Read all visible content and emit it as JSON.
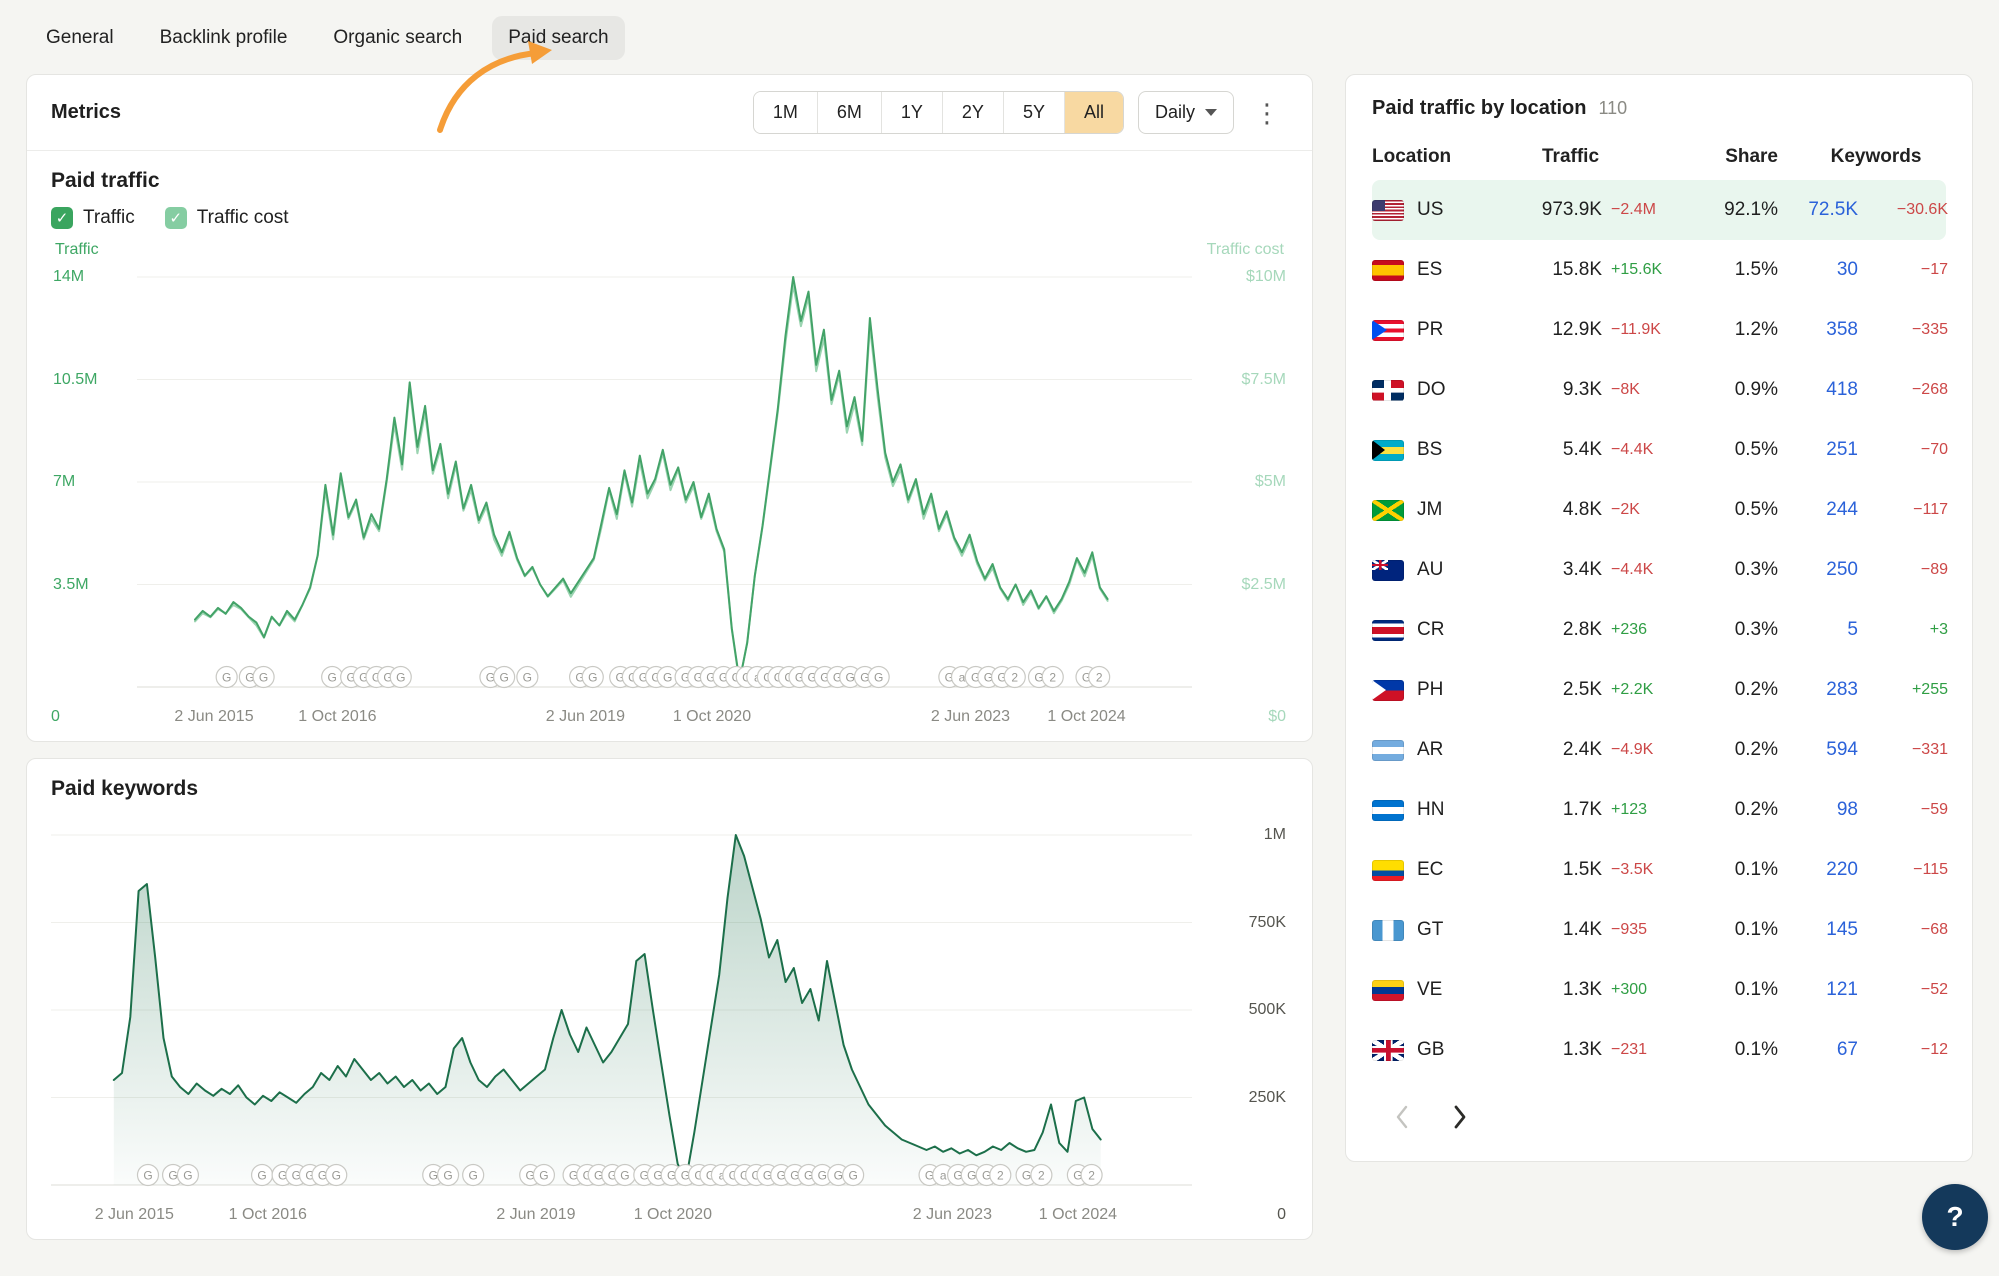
{
  "palette": {
    "accent_orange": "#f59d38",
    "active_range_bg": "#f8d9a2",
    "traffic_green": "#43a368",
    "traffic_cost_green": "#9bd4b1",
    "keywords_green": "#1c6f4a",
    "positive": "#2f9e44",
    "negative": "#cc4747",
    "link_blue": "#2b62d9",
    "row_highlight": "#e9f6ee"
  },
  "tabs": {
    "items": [
      {
        "label": "General",
        "active": false
      },
      {
        "label": "Backlink profile",
        "active": false
      },
      {
        "label": "Organic search",
        "active": false
      },
      {
        "label": "Paid search",
        "active": true
      }
    ]
  },
  "metrics": {
    "title": "Metrics",
    "range_buttons": [
      "1M",
      "6M",
      "1Y",
      "2Y",
      "5Y",
      "All"
    ],
    "active_range": "All",
    "granularity": "Daily",
    "more_icon": "⋮"
  },
  "paid_traffic_section": {
    "title": "Paid traffic",
    "legend": [
      {
        "label": "Traffic",
        "checked": true,
        "color": "#3aa55f"
      },
      {
        "label": "Traffic cost",
        "checked": true,
        "color": "#85cda2"
      }
    ]
  },
  "paid_keywords_section": {
    "title": "Paid keywords"
  },
  "chart_data": [
    {
      "type": "line",
      "title": "Paid traffic",
      "x_range": [
        0.055,
        0.92
      ],
      "x_labels": [
        {
          "label": "2 Jun 2015",
          "f": 0.073
        },
        {
          "label": "1 Oct 2016",
          "f": 0.19
        },
        {
          "label": "2 Jun 2019",
          "f": 0.425
        },
        {
          "label": "1 Oct 2020",
          "f": 0.545
        },
        {
          "label": "2 Jun 2023",
          "f": 0.79
        },
        {
          "label": "1 Oct 2024",
          "f": 0.9
        }
      ],
      "primary_max": 14,
      "grid_values": [
        14,
        10.5,
        7,
        3.5,
        0
      ],
      "left_axis": {
        "title": "Traffic",
        "color": "#3ea764",
        "zero_label": "0",
        "ticks": [
          {
            "label": "14M",
            "value": 14
          },
          {
            "label": "10.5M",
            "value": 10.5
          },
          {
            "label": "7M",
            "value": 7
          },
          {
            "label": "3.5M",
            "value": 3.5
          }
        ]
      },
      "right_axis": {
        "title": "Traffic cost",
        "color": "#a6d8bb",
        "zero_label": "$0",
        "max": 10,
        "ticks": [
          {
            "label": "$10M",
            "value": 10
          },
          {
            "label": "$7.5M",
            "value": 7.5
          },
          {
            "label": "$5M",
            "value": 5
          },
          {
            "label": "$2.5M",
            "value": 2.5
          }
        ]
      },
      "series": [
        {
          "name": "Traffic cost",
          "unit": "$M",
          "color": "#9bd4b1",
          "axis_max": 10,
          "values": [
            1.6,
            1.8,
            1.7,
            1.9,
            1.8,
            2.0,
            1.9,
            1.7,
            1.5,
            1.2,
            1.7,
            1.5,
            1.8,
            1.6,
            2.0,
            2.4,
            3.2,
            4.8,
            3.6,
            5.1,
            4.1,
            4.5,
            3.6,
            4.1,
            3.8,
            5.0,
            6.4,
            5.3,
            7.3,
            5.7,
            6.7,
            5.2,
            5.8,
            4.6,
            5.4,
            4.3,
            4.8,
            4.0,
            4.4,
            3.6,
            3.2,
            3.7,
            3.1,
            2.7,
            2.9,
            2.5,
            2.2,
            2.4,
            2.6,
            2.2,
            2.5,
            2.8,
            3.1,
            3.9,
            4.8,
            4.1,
            5.2,
            4.4,
            5.5,
            4.6,
            5.0,
            5.7,
            4.8,
            5.3,
            4.5,
            4.9,
            4.1,
            4.6,
            3.8,
            3.3,
            1.4,
            0.1,
            1.1,
            2.7,
            3.9,
            5.3,
            6.7,
            8.4,
            9.8,
            8.8,
            9.5,
            7.7,
            8.5,
            6.9,
            7.6,
            6.2,
            6.9,
            5.9,
            8.8,
            7.1,
            5.6,
            4.9,
            5.3,
            4.5,
            5.0,
            4.1,
            4.6,
            3.8,
            4.2,
            3.6,
            3.2,
            3.6,
            3.0,
            2.6,
            2.9,
            2.4,
            2.1,
            2.5,
            2.0,
            2.3,
            1.9,
            2.2,
            1.8,
            2.1,
            2.5,
            3.1,
            2.7,
            3.2,
            2.4,
            2.1
          ]
        },
        {
          "name": "Traffic",
          "unit": "M",
          "color": "#43a368",
          "axis_max": 14,
          "values": [
            2.3,
            2.6,
            2.4,
            2.7,
            2.5,
            2.9,
            2.7,
            2.4,
            2.2,
            1.7,
            2.4,
            2.1,
            2.6,
            2.3,
            2.8,
            3.4,
            4.5,
            6.9,
            5.2,
            7.3,
            5.8,
            6.4,
            5.1,
            5.9,
            5.4,
            7.1,
            9.2,
            7.6,
            10.4,
            8.2,
            9.6,
            7.4,
            8.3,
            6.6,
            7.7,
            6.1,
            6.9,
            5.7,
            6.3,
            5.2,
            4.6,
            5.3,
            4.4,
            3.8,
            4.1,
            3.5,
            3.1,
            3.4,
            3.7,
            3.2,
            3.6,
            4.0,
            4.4,
            5.6,
            6.8,
            5.9,
            7.4,
            6.3,
            7.9,
            6.6,
            7.1,
            8.1,
            6.9,
            7.5,
            6.4,
            7.0,
            5.8,
            6.6,
            5.4,
            4.7,
            2.0,
            0.2,
            1.5,
            3.8,
            5.5,
            7.5,
            9.5,
            12.0,
            14.0,
            12.5,
            13.5,
            11.0,
            12.2,
            9.8,
            10.8,
            8.9,
            9.9,
            8.4,
            12.6,
            10.2,
            8.0,
            7.0,
            7.6,
            6.4,
            7.1,
            5.9,
            6.6,
            5.4,
            6.0,
            5.1,
            4.6,
            5.2,
            4.3,
            3.7,
            4.2,
            3.4,
            3.0,
            3.5,
            2.9,
            3.3,
            2.7,
            3.1,
            2.6,
            3.0,
            3.6,
            4.4,
            3.9,
            4.6,
            3.4,
            3.0
          ]
        }
      ],
      "markers": [
        {
          "f": 0.085,
          "l": "G"
        },
        {
          "f": 0.107,
          "l": "G"
        },
        {
          "f": 0.12,
          "l": "G"
        },
        {
          "f": 0.185,
          "l": "G"
        },
        {
          "f": 0.203,
          "l": "G"
        },
        {
          "f": 0.215,
          "l": "G"
        },
        {
          "f": 0.227,
          "l": "G"
        },
        {
          "f": 0.238,
          "l": "G"
        },
        {
          "f": 0.25,
          "l": "G"
        },
        {
          "f": 0.335,
          "l": "G"
        },
        {
          "f": 0.348,
          "l": "G"
        },
        {
          "f": 0.37,
          "l": "G"
        },
        {
          "f": 0.42,
          "l": "G"
        },
        {
          "f": 0.432,
          "l": "G"
        },
        {
          "f": 0.458,
          "l": "G"
        },
        {
          "f": 0.47,
          "l": "G"
        },
        {
          "f": 0.48,
          "l": "G"
        },
        {
          "f": 0.492,
          "l": "G"
        },
        {
          "f": 0.503,
          "l": "G"
        },
        {
          "f": 0.52,
          "l": "G"
        },
        {
          "f": 0.532,
          "l": "G"
        },
        {
          "f": 0.544,
          "l": "G"
        },
        {
          "f": 0.556,
          "l": "G"
        },
        {
          "f": 0.568,
          "l": "G"
        },
        {
          "f": 0.578,
          "l": "G"
        },
        {
          "f": 0.588,
          "l": "a"
        },
        {
          "f": 0.598,
          "l": "G"
        },
        {
          "f": 0.608,
          "l": "G"
        },
        {
          "f": 0.618,
          "l": "G"
        },
        {
          "f": 0.628,
          "l": "G"
        },
        {
          "f": 0.64,
          "l": "G"
        },
        {
          "f": 0.652,
          "l": "G"
        },
        {
          "f": 0.664,
          "l": "G"
        },
        {
          "f": 0.676,
          "l": "G"
        },
        {
          "f": 0.69,
          "l": "G"
        },
        {
          "f": 0.703,
          "l": "G"
        },
        {
          "f": 0.77,
          "l": "G"
        },
        {
          "f": 0.782,
          "l": "a"
        },
        {
          "f": 0.795,
          "l": "G"
        },
        {
          "f": 0.807,
          "l": "G"
        },
        {
          "f": 0.82,
          "l": "G"
        },
        {
          "f": 0.832,
          "l": "2"
        },
        {
          "f": 0.855,
          "l": "G"
        },
        {
          "f": 0.868,
          "l": "2"
        },
        {
          "f": 0.9,
          "l": "G"
        },
        {
          "f": 0.912,
          "l": "2"
        }
      ]
    },
    {
      "type": "area",
      "title": "Paid keywords",
      "x_range": [
        0.055,
        0.92
      ],
      "x_labels": [
        {
          "label": "2 Jun 2015",
          "f": 0.073
        },
        {
          "label": "1 Oct 2016",
          "f": 0.19
        },
        {
          "label": "2 Jun 2019",
          "f": 0.425
        },
        {
          "label": "1 Oct 2020",
          "f": 0.545
        },
        {
          "label": "2 Jun 2023",
          "f": 0.79
        },
        {
          "label": "1 Oct 2024",
          "f": 0.9
        }
      ],
      "primary_max": 1000,
      "grid_values": [
        1000,
        750,
        500,
        250,
        0
      ],
      "right_axis": {
        "title": "",
        "color": "#55554f",
        "zero_label": "0",
        "max": 1000,
        "ticks": [
          {
            "label": "1M",
            "value": 1000
          },
          {
            "label": "750K",
            "value": 750
          },
          {
            "label": "500K",
            "value": 500
          },
          {
            "label": "250K",
            "value": 250
          }
        ]
      },
      "series": [
        {
          "name": "Paid keywords",
          "unit": "K",
          "color": "#1c6f4a",
          "fill": true,
          "axis_max": 1000,
          "values": [
            300,
            320,
            480,
            840,
            860,
            650,
            420,
            310,
            280,
            260,
            290,
            270,
            255,
            275,
            260,
            285,
            250,
            230,
            255,
            240,
            265,
            250,
            235,
            260,
            280,
            320,
            300,
            340,
            310,
            360,
            330,
            300,
            320,
            290,
            310,
            280,
            300,
            270,
            290,
            260,
            280,
            390,
            420,
            350,
            300,
            280,
            310,
            330,
            300,
            270,
            290,
            310,
            330,
            420,
            500,
            430,
            380,
            450,
            400,
            350,
            380,
            420,
            460,
            640,
            660,
            500,
            350,
            200,
            60,
            15,
            150,
            300,
            450,
            600,
            820,
            1000,
            940,
            850,
            760,
            650,
            700,
            580,
            620,
            520,
            560,
            470,
            640,
            520,
            400,
            330,
            280,
            230,
            200,
            170,
            150,
            130,
            120,
            110,
            100,
            110,
            95,
            105,
            90,
            100,
            85,
            95,
            110,
            100,
            120,
            105,
            95,
            100,
            150,
            230,
            120,
            95,
            240,
            250,
            160,
            130
          ]
        }
      ]
    }
  ],
  "location_panel": {
    "title": "Paid traffic by location",
    "count": "110",
    "columns": [
      "Location",
      "Traffic",
      "Share",
      "Keywords"
    ],
    "rows": [
      {
        "code": "US",
        "flag": "us",
        "traffic": "973.9K",
        "traffic_change": "−2.4M",
        "traffic_dir": "neg",
        "share": "92.1%",
        "keywords": "72.5K",
        "keywords_change": "−30.6K",
        "keywords_dir": "neg",
        "highlight": true
      },
      {
        "code": "ES",
        "flag": "es",
        "traffic": "15.8K",
        "traffic_change": "+15.6K",
        "traffic_dir": "pos",
        "share": "1.5%",
        "keywords": "30",
        "keywords_change": "−17",
        "keywords_dir": "neg",
        "highlight": false
      },
      {
        "code": "PR",
        "flag": "pr",
        "traffic": "12.9K",
        "traffic_change": "−11.9K",
        "traffic_dir": "neg",
        "share": "1.2%",
        "keywords": "358",
        "keywords_change": "−335",
        "keywords_dir": "neg",
        "highlight": false
      },
      {
        "code": "DO",
        "flag": "do",
        "traffic": "9.3K",
        "traffic_change": "−8K",
        "traffic_dir": "neg",
        "share": "0.9%",
        "keywords": "418",
        "keywords_change": "−268",
        "keywords_dir": "neg",
        "highlight": false
      },
      {
        "code": "BS",
        "flag": "bs",
        "traffic": "5.4K",
        "traffic_change": "−4.4K",
        "traffic_dir": "neg",
        "share": "0.5%",
        "keywords": "251",
        "keywords_change": "−70",
        "keywords_dir": "neg",
        "highlight": false
      },
      {
        "code": "JM",
        "flag": "jm",
        "traffic": "4.8K",
        "traffic_change": "−2K",
        "traffic_dir": "neg",
        "share": "0.5%",
        "keywords": "244",
        "keywords_change": "−117",
        "keywords_dir": "neg",
        "highlight": false
      },
      {
        "code": "AU",
        "flag": "au",
        "traffic": "3.4K",
        "traffic_change": "−4.4K",
        "traffic_dir": "neg",
        "share": "0.3%",
        "keywords": "250",
        "keywords_change": "−89",
        "keywords_dir": "neg",
        "highlight": false
      },
      {
        "code": "CR",
        "flag": "cr",
        "traffic": "2.8K",
        "traffic_change": "+236",
        "traffic_dir": "pos",
        "share": "0.3%",
        "keywords": "5",
        "keywords_change": "+3",
        "keywords_dir": "pos",
        "highlight": false
      },
      {
        "code": "PH",
        "flag": "ph",
        "traffic": "2.5K",
        "traffic_change": "+2.2K",
        "traffic_dir": "pos",
        "share": "0.2%",
        "keywords": "283",
        "keywords_change": "+255",
        "keywords_dir": "pos",
        "highlight": false
      },
      {
        "code": "AR",
        "flag": "ar",
        "traffic": "2.4K",
        "traffic_change": "−4.9K",
        "traffic_dir": "neg",
        "share": "0.2%",
        "keywords": "594",
        "keywords_change": "−331",
        "keywords_dir": "neg",
        "highlight": false
      },
      {
        "code": "HN",
        "flag": "hn",
        "traffic": "1.7K",
        "traffic_change": "+123",
        "traffic_dir": "pos",
        "share": "0.2%",
        "keywords": "98",
        "keywords_change": "−59",
        "keywords_dir": "neg",
        "highlight": false
      },
      {
        "code": "EC",
        "flag": "ec",
        "traffic": "1.5K",
        "traffic_change": "−3.5K",
        "traffic_dir": "neg",
        "share": "0.1%",
        "keywords": "220",
        "keywords_change": "−115",
        "keywords_dir": "neg",
        "highlight": false
      },
      {
        "code": "GT",
        "flag": "gt",
        "traffic": "1.4K",
        "traffic_change": "−935",
        "traffic_dir": "neg",
        "share": "0.1%",
        "keywords": "145",
        "keywords_change": "−68",
        "keywords_dir": "neg",
        "highlight": false
      },
      {
        "code": "VE",
        "flag": "ve",
        "traffic": "1.3K",
        "traffic_change": "+300",
        "traffic_dir": "pos",
        "share": "0.1%",
        "keywords": "121",
        "keywords_change": "−52",
        "keywords_dir": "neg",
        "highlight": false
      },
      {
        "code": "GB",
        "flag": "gb",
        "traffic": "1.3K",
        "traffic_change": "−231",
        "traffic_dir": "neg",
        "share": "0.1%",
        "keywords": "67",
        "keywords_change": "−12",
        "keywords_dir": "neg",
        "highlight": false
      }
    ],
    "pagination": {
      "prev_enabled": false,
      "next_enabled": true
    }
  },
  "help_button": {
    "label": "?"
  }
}
